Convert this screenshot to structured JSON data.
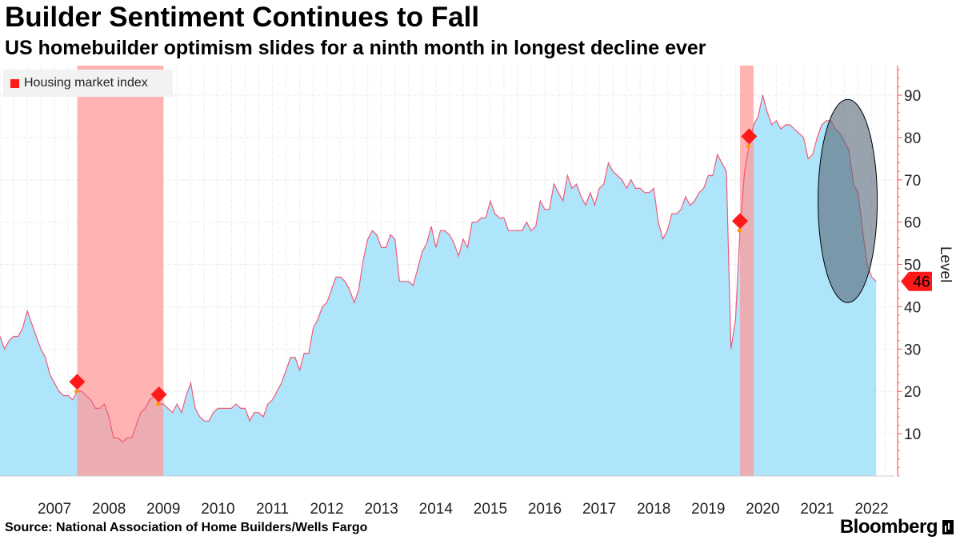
{
  "title": "Builder Sentiment Continues to Fall",
  "subtitle": "US homebuilder optimism slides for a ninth month in longest decline ever",
  "source": "Source: National Association of Home Builders/Wells Fargo",
  "brand": "Bloomberg",
  "colors": {
    "area_fill": "#aee5fb",
    "line": "#f05a78",
    "recession_band": "#ff9a9a",
    "axis": "#ff5a5a",
    "last_value_badge": "#ff1a1a",
    "highlight_ellipse": "#556677"
  },
  "chart_data": {
    "type": "area",
    "title": "Builder Sentiment Continues to Fall",
    "subtitle": "US homebuilder optimism slides for a ninth month in longest decline ever",
    "ylabel": "Level",
    "ylim": [
      0,
      97
    ],
    "yticks": [
      10,
      20,
      30,
      40,
      50,
      60,
      70,
      80,
      90
    ],
    "xlim": [
      "2006-07",
      "2022-12"
    ],
    "xtick_labels": [
      "2007",
      "2008",
      "2009",
      "2010",
      "2011",
      "2012",
      "2013",
      "2014",
      "2015",
      "2016",
      "2017",
      "2018",
      "2019",
      "2020",
      "2021",
      "2022"
    ],
    "grid": true,
    "legend": {
      "position": "top-left",
      "entries": [
        "Housing market index"
      ]
    },
    "series": [
      {
        "name": "Housing market index",
        "frequency": "monthly",
        "start": "2006-07",
        "values": [
          33,
          30,
          32,
          33,
          33,
          35,
          39,
          36,
          33,
          30,
          28,
          24,
          22,
          20,
          19,
          19,
          18,
          20,
          20,
          19,
          18,
          16,
          16,
          17,
          14,
          9,
          9,
          8,
          9,
          9,
          12,
          15,
          16,
          18,
          19,
          17,
          17,
          16,
          15,
          17,
          15,
          19,
          22,
          16,
          14,
          13,
          13,
          15,
          16,
          16,
          16,
          16,
          17,
          16,
          16,
          13,
          15,
          15,
          14,
          17,
          18,
          20,
          22,
          25,
          28,
          28,
          25,
          29,
          29,
          35,
          37,
          40,
          41,
          44,
          47,
          47,
          46,
          44,
          41,
          44,
          51,
          56,
          58,
          57,
          54,
          54,
          57,
          56,
          46,
          46,
          46,
          45,
          49,
          53,
          55,
          59,
          54,
          58,
          58,
          57,
          55,
          52,
          56,
          54,
          60,
          60,
          61,
          61,
          65,
          62,
          61,
          61,
          58,
          58,
          58,
          58,
          60,
          58,
          59,
          65,
          63,
          63,
          69,
          67,
          65,
          71,
          68,
          69,
          66,
          64,
          67,
          64,
          68,
          69,
          74,
          72,
          71,
          70,
          68,
          70,
          68,
          68,
          67,
          67,
          68,
          60,
          56,
          58,
          62,
          62,
          63,
          66,
          64,
          65,
          67,
          68,
          71,
          71,
          76,
          74,
          72,
          30,
          37,
          58,
          72,
          78,
          83,
          85,
          90,
          86,
          83,
          84,
          82,
          83,
          83,
          82,
          81,
          80,
          75,
          76,
          80,
          83,
          84,
          84,
          82,
          81,
          79,
          77,
          69,
          67,
          58,
          50,
          47,
          46
        ]
      }
    ],
    "recession_bands": [
      [
        "2007-12",
        "2009-06"
      ],
      [
        "2020-02",
        "2020-04"
      ]
    ],
    "last_value_label": "46",
    "highlight": "ellipse around 2022 decline"
  }
}
